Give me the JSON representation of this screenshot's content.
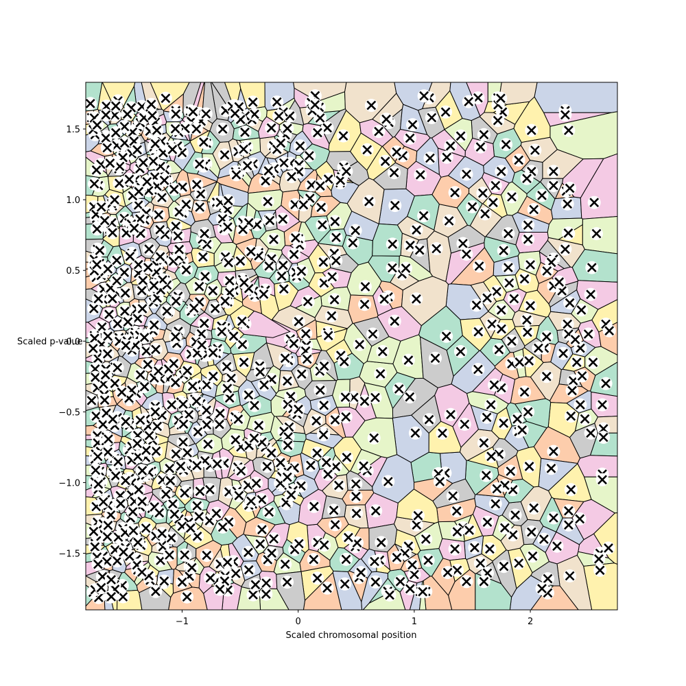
{
  "chart_data": {
    "type": "scatter",
    "title": "",
    "xlabel": "Scaled chromosomal position",
    "ylabel": "Scaled p-value",
    "xlim": [
      -1.83,
      2.75
    ],
    "ylim": [
      -1.9,
      1.83
    ],
    "xticks": [
      -1,
      0,
      1,
      2
    ],
    "xtick_labels": [
      "−1",
      "0",
      "1",
      "2"
    ],
    "yticks": [
      -1.5,
      -1.0,
      -0.5,
      0.0,
      0.5,
      1.0,
      1.5
    ],
    "ytick_labels": [
      "−1.5",
      "−1.0",
      "−0.5",
      "0.0",
      "0.5",
      "1.0",
      "1.5"
    ],
    "grid": false,
    "legend": "none",
    "marker": "x",
    "marker_color": "#000000",
    "marker_halo_color": "#ffffff",
    "background": "voronoi regions of the points, Pastel2 colormap",
    "palette": [
      "#b3e2cd",
      "#fdcdac",
      "#cbd5e8",
      "#f4cae4",
      "#e6f5c9",
      "#fff2ae",
      "#f1e2cc",
      "#cccccc"
    ],
    "cell_edge_color": "#000000",
    "note_points": "approximately 1000 points; density highest on the left, sparse toward the right",
    "points": [
      [
        -1.79,
        1.68
      ],
      [
        -1.78,
        1.58
      ],
      [
        -1.75,
        1.46
      ],
      [
        -1.7,
        1.25
      ],
      [
        -1.72,
        1.1
      ],
      [
        -1.76,
        0.95
      ],
      [
        -1.69,
        0.82
      ],
      [
        -1.73,
        0.65
      ],
      [
        -1.71,
        0.55
      ],
      [
        -1.74,
        0.45
      ],
      [
        -1.76,
        0.23
      ],
      [
        -1.69,
        0.1
      ],
      [
        -1.72,
        -0.05
      ],
      [
        -1.72,
        -0.2
      ],
      [
        -1.73,
        -0.33
      ],
      [
        -1.78,
        -0.42
      ],
      [
        -1.74,
        -0.53
      ],
      [
        -1.73,
        -0.66
      ],
      [
        -1.72,
        -0.8
      ],
      [
        -1.71,
        -0.92
      ],
      [
        -1.72,
        -1.05
      ],
      [
        -1.74,
        -1.17
      ],
      [
        -1.73,
        -1.28
      ],
      [
        -1.75,
        -1.43
      ],
      [
        -1.68,
        -1.52
      ],
      [
        -1.7,
        -1.38
      ],
      [
        -1.66,
        -1.12
      ],
      [
        -1.63,
        -0.75
      ],
      [
        -1.62,
        -0.3
      ],
      [
        -1.64,
        0.3
      ],
      [
        2.2,
        1.2
      ],
      [
        2.2,
        1.1
      ],
      [
        2.1,
        1.03
      ],
      [
        2.31,
        1.06
      ],
      [
        2.32,
        0.97
      ],
      [
        2.55,
        0.98
      ],
      [
        2.57,
        0.76
      ],
      [
        2.33,
        0.76
      ],
      [
        2.3,
        0.65
      ],
      [
        2.2,
        0.58
      ],
      [
        2.53,
        0.52
      ],
      [
        2.2,
        0.39
      ],
      [
        2.34,
        0.27
      ],
      [
        2.52,
        0.33
      ],
      [
        2.44,
        0.22
      ],
      [
        2.65,
        0.12
      ],
      [
        2.32,
        0.12
      ],
      [
        2.33,
        0.05
      ],
      [
        2.14,
        0.03
      ],
      [
        2.12,
        -0.05
      ],
      [
        2.43,
        -0.05
      ],
      [
        2.5,
        0.05
      ],
      [
        2.54,
        -0.15
      ],
      [
        2.4,
        -0.15
      ],
      [
        2.14,
        -0.25
      ],
      [
        2.37,
        -0.28
      ],
      [
        2.65,
        -0.3
      ],
      [
        2.36,
        -0.35
      ],
      [
        2.43,
        -0.45
      ],
      [
        2.62,
        -0.45
      ],
      [
        2.47,
        -0.55
      ],
      [
        2.35,
        -0.53
      ],
      [
        2.63,
        -0.62
      ],
      [
        2.52,
        -0.65
      ],
      [
        2.63,
        -0.68
      ],
      [
        2.2,
        -0.78
      ],
      [
        2.18,
        -0.9
      ],
      [
        2.62,
        -0.94
      ],
      [
        2.62,
        -0.98
      ],
      [
        2.35,
        -1.05
      ],
      [
        2.03,
        -1.18
      ],
      [
        2.01,
        -1.35
      ],
      [
        2.2,
        -1.25
      ],
      [
        2.33,
        -1.2
      ],
      [
        2.33,
        -1.3
      ],
      [
        2.6,
        -1.5
      ],
      [
        2.59,
        -1.54
      ],
      [
        2.6,
        -1.62
      ],
      [
        2.34,
        -1.66
      ],
      [
        2.15,
        -1.68
      ],
      [
        2.13,
        -1.76
      ],
      [
        2.15,
        -1.78
      ],
      [
        2.1,
        -1.75
      ],
      [
        2.23,
        -1.45
      ],
      [
        2.02,
        -1.52
      ],
      [
        1.9,
        -1.57
      ],
      [
        1.85,
        -1.37
      ],
      [
        1.87,
        -1.23
      ],
      [
        1.85,
        -1.05
      ],
      [
        1.83,
        -0.92
      ],
      [
        2.3,
        1.63
      ],
      [
        2.3,
        1.6
      ],
      [
        2.33,
        1.49
      ],
      [
        2.01,
        1.49
      ],
      [
        2.04,
        1.35
      ],
      [
        2.01,
        1.2
      ],
      [
        1.97,
        1.15
      ],
      [
        2.03,
        0.93
      ],
      [
        1.98,
        0.82
      ],
      [
        1.98,
        0.72
      ],
      [
        2.0,
        0.54
      ],
      [
        2.0,
        0.25
      ],
      [
        1.97,
        0.15
      ],
      [
        2.07,
        -0.05
      ],
      [
        1.98,
        -0.5
      ],
      [
        1.95,
        -0.36
      ],
      [
        1.9,
        -0.64
      ],
      [
        1.55,
        1.72
      ],
      [
        1.72,
        1.72
      ],
      [
        1.76,
        1.62
      ],
      [
        1.72,
        1.56
      ],
      [
        1.6,
        1.46
      ],
      [
        1.79,
        1.39
      ],
      [
        1.9,
        1.28
      ],
      [
        1.75,
        1.2
      ],
      [
        1.7,
        1.1
      ],
      [
        1.84,
        1.02
      ],
      [
        1.68,
        0.98
      ],
      [
        1.61,
        0.9
      ],
      [
        1.81,
        0.76
      ],
      [
        1.77,
        0.64
      ],
      [
        1.56,
        0.53
      ],
      [
        1.81,
        0.52
      ],
      [
        1.86,
        0.3
      ],
      [
        1.75,
        0.22
      ],
      [
        1.71,
        0.35
      ],
      [
        1.67,
        0.12
      ],
      [
        1.84,
        0.0
      ],
      [
        1.73,
        -0.06
      ],
      [
        1.84,
        -0.16
      ],
      [
        1.55,
        -0.2
      ],
      [
        1.75,
        -0.33
      ],
      [
        1.66,
        -0.45
      ],
      [
        1.77,
        -0.58
      ],
      [
        1.6,
        -0.72
      ],
      [
        1.73,
        -0.8
      ],
      [
        1.62,
        -0.95
      ],
      [
        1.78,
        -1.02
      ],
      [
        1.7,
        -1.15
      ],
      [
        1.63,
        -1.28
      ],
      [
        1.78,
        -1.32
      ],
      [
        1.65,
        -1.47
      ],
      [
        1.57,
        -1.57
      ],
      [
        1.63,
        -1.64
      ],
      [
        1.6,
        -1.7
      ],
      [
        1.45,
        -1.7
      ],
      [
        1.52,
        -1.46
      ],
      [
        1.35,
        -1.47
      ],
      [
        1.42,
        -1.32
      ],
      [
        1.37,
        -1.62
      ],
      [
        1.3,
        0.85
      ],
      [
        1.42,
        0.69
      ],
      [
        1.5,
        0.95
      ],
      [
        1.35,
        1.05
      ],
      [
        1.45,
        1.18
      ],
      [
        1.28,
        1.3
      ],
      [
        1.4,
        1.45
      ],
      [
        1.27,
        1.62
      ],
      [
        1.13,
        1.72
      ],
      [
        1.15,
        1.58
      ],
      [
        1.12,
        -1.55
      ],
      [
        1.1,
        -1.77
      ],
      [
        1.05,
        -1.77
      ],
      [
        1.0,
        -1.65
      ],
      [
        1.1,
        -1.4
      ],
      [
        0.95,
        -1.45
      ],
      [
        1.02,
        -1.3
      ],
      [
        0.92,
        -1.5
      ],
      [
        0.88,
        -1.7
      ],
      [
        0.85,
        -1.53
      ]
    ]
  }
}
